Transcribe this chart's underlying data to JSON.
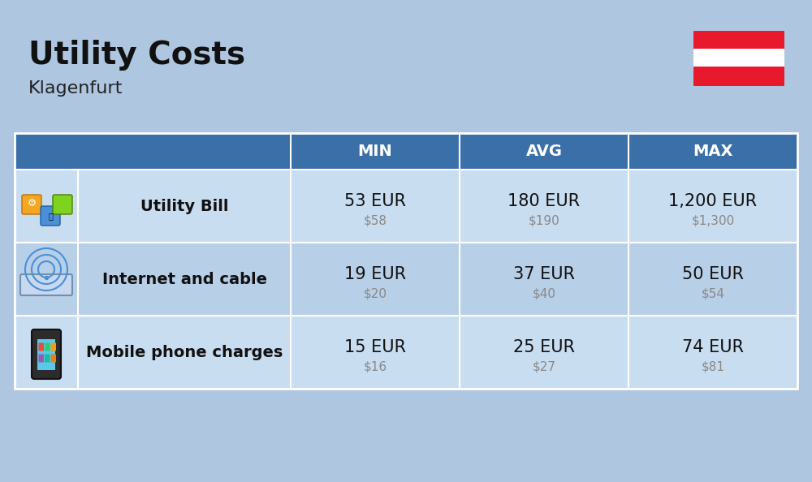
{
  "title": "Utility Costs",
  "subtitle": "Klagenfurt",
  "background_color": "#aec6e0",
  "header_color": "#3a6fa8",
  "header_text_color": "#ffffff",
  "row_color_light": "#c9ddf0",
  "row_color_dark": "#b8cfe8",
  "table_border_color": "#ffffff",
  "headers": [
    "",
    "",
    "MIN",
    "AVG",
    "MAX"
  ],
  "rows": [
    {
      "label": "Utility Bill",
      "min_eur": "53 EUR",
      "min_usd": "$58",
      "avg_eur": "180 EUR",
      "avg_usd": "$190",
      "max_eur": "1,200 EUR",
      "max_usd": "$1,300",
      "icon": "utility"
    },
    {
      "label": "Internet and cable",
      "min_eur": "19 EUR",
      "min_usd": "$20",
      "avg_eur": "37 EUR",
      "avg_usd": "$40",
      "max_eur": "50 EUR",
      "max_usd": "$54",
      "icon": "internet"
    },
    {
      "label": "Mobile phone charges",
      "min_eur": "15 EUR",
      "min_usd": "$16",
      "avg_eur": "25 EUR",
      "avg_usd": "$27",
      "max_eur": "74 EUR",
      "max_usd": "$81",
      "icon": "mobile"
    }
  ],
  "flag_red": "#e8192c",
  "flag_white": "#ffffff",
  "eur_fontsize": 15,
  "usd_fontsize": 11,
  "label_fontsize": 14,
  "header_fontsize": 14,
  "title_fontsize": 28,
  "subtitle_fontsize": 16
}
